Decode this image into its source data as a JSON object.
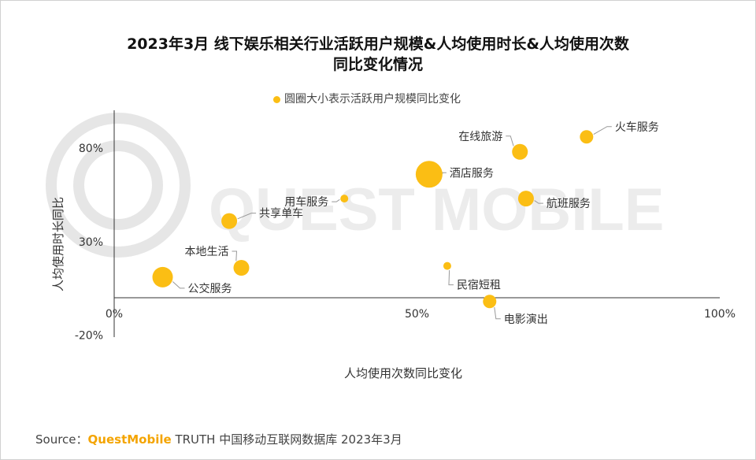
{
  "title_line1": "2023年3月 线下娱乐相关行业活跃用户规模&人均使用时长&人均使用次数",
  "title_line2": "同比变化情况",
  "legend_label": "圆圈大小表示活跃用户规模同比变化",
  "source": {
    "prefix": "Source：",
    "brand": "QuestMobile",
    "suffix": " TRUTH 中国移动互联网数据库 2023年3月"
  },
  "watermark_text": "QUEST MOBILE",
  "colors": {
    "bubble": "#fbbe14",
    "axis": "#333333",
    "leader": "#999999"
  },
  "chart_data": {
    "type": "scatter",
    "title": "2023年3月 线下娱乐相关行业活跃用户规模&人均使用时长&人均使用次数 同比变化情况",
    "xlabel": "人均使用次数同比变化",
    "ylabel": "人均使用时长同比",
    "xlim": [
      0,
      100
    ],
    "ylim": [
      -20,
      100
    ],
    "x_ticks": [
      {
        "value": 0,
        "label": "0%"
      },
      {
        "value": 50,
        "label": "50%"
      },
      {
        "value": 100,
        "label": "100%"
      }
    ],
    "y_ticks": [
      {
        "value": 80,
        "label": "80%"
      },
      {
        "value": 30,
        "label": "30%"
      },
      {
        "value": -20,
        "label": "-20%"
      }
    ],
    "grid": false,
    "legend_position": "top",
    "size_encodes": "活跃用户规模同比变化",
    "points": [
      {
        "label": "火车服务",
        "x": 78,
        "y": 86,
        "size": 2
      },
      {
        "label": "在线旅游",
        "x": 67,
        "y": 78,
        "size": 3
      },
      {
        "label": "酒店服务",
        "x": 52,
        "y": 66,
        "size": 5
      },
      {
        "label": "用车服务",
        "x": 38,
        "y": 53,
        "size": 1
      },
      {
        "label": "航班服务",
        "x": 68,
        "y": 53,
        "size": 3
      },
      {
        "label": "共享单车",
        "x": 19,
        "y": 41,
        "size": 3
      },
      {
        "label": "本地生活",
        "x": 21,
        "y": 16,
        "size": 3
      },
      {
        "label": "民宿短租",
        "x": 55,
        "y": 17,
        "size": 1
      },
      {
        "label": "公交服务",
        "x": 8,
        "y": 11,
        "size": 4
      },
      {
        "label": "电影演出",
        "x": 62,
        "y": -2,
        "size": 2
      }
    ]
  }
}
